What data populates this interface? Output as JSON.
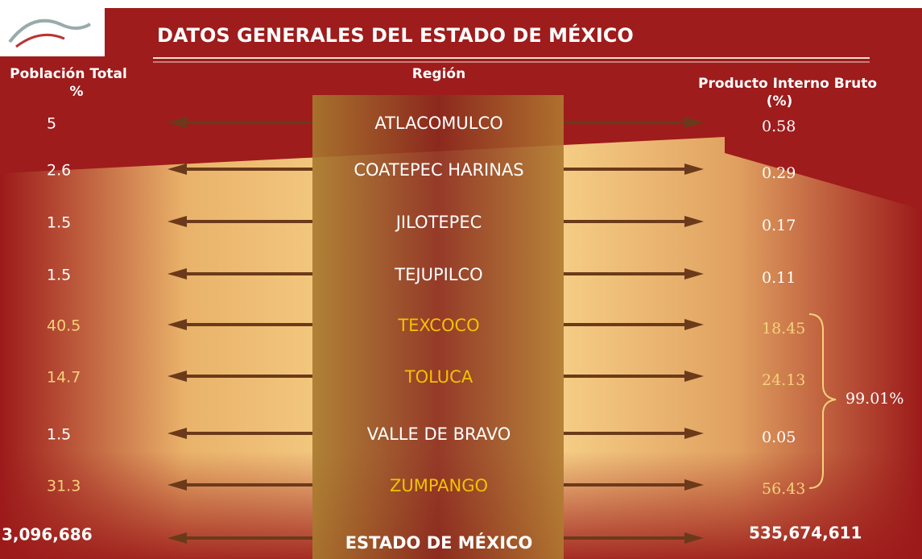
{
  "title": "DATOS GENERALES DEL ESTADO DE MÉXICO",
  "headers": {
    "poblacion": [
      "Población Total",
      "%"
    ],
    "region": "Región",
    "pib": [
      "Producto Interno Bruto",
      "(%)"
    ]
  },
  "rows": [
    {
      "region": "ATLACOMULCO",
      "poblacion": 5,
      "pib": 0.58,
      "highlight": false
    },
    {
      "region": "COATEPEC HARINAS",
      "poblacion": 2.6,
      "pib": 0.29,
      "highlight": false
    },
    {
      "region": "JILOTEPEC",
      "poblacion": 1.5,
      "pib": 0.17,
      "highlight": false
    },
    {
      "region": "TEJUPILCO",
      "poblacion": 1.5,
      "pib": 0.11,
      "highlight": false
    },
    {
      "region": "TEXCOCO",
      "poblacion": 40.5,
      "pib": 18.45,
      "highlight": true
    },
    {
      "region": "TOLUCA",
      "poblacion": 14.7,
      "pib": 24.13,
      "highlight": true
    },
    {
      "region": "VALLE DE BRAVO",
      "poblacion": 1.5,
      "pib": 0.05,
      "highlight": false
    },
    {
      "region": "ZUMPANGO",
      "poblacion": 31.3,
      "pib": 56.43,
      "highlight": true
    }
  ],
  "total": {
    "region": "ESTADO DE MÉXICO",
    "poblacion": "3,096,686",
    "pib": "535,674,611"
  },
  "bracket_note": "99.01%"
}
